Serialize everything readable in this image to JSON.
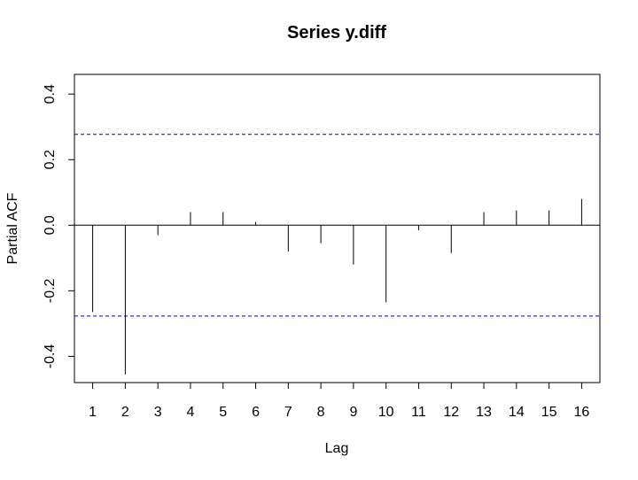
{
  "chart_data": {
    "type": "bar",
    "title": "Series  y.diff",
    "xlabel": "Lag",
    "ylabel": "Partial ACF",
    "x": [
      1,
      2,
      3,
      4,
      5,
      6,
      7,
      8,
      9,
      10,
      11,
      12,
      13,
      14,
      15,
      16
    ],
    "values": [
      -0.265,
      -0.455,
      -0.03,
      0.04,
      0.04,
      0.01,
      -0.08,
      -0.055,
      -0.12,
      -0.235,
      -0.015,
      -0.085,
      0.04,
      0.045,
      0.045,
      0.08
    ],
    "xticks": [
      "1",
      "2",
      "3",
      "4",
      "5",
      "6",
      "7",
      "8",
      "9",
      "10",
      "11",
      "12",
      "13",
      "14",
      "15",
      "16"
    ],
    "yticks": [
      "-0.4",
      "-0.2",
      "0.0",
      "0.2",
      "0.4"
    ],
    "ytick_values": [
      -0.4,
      -0.2,
      0.0,
      0.2,
      0.4
    ],
    "xlim": [
      0.44,
      16.56
    ],
    "ylim": [
      -0.48,
      0.46
    ],
    "confidence_bounds": [
      0.277,
      -0.277
    ],
    "bound_color": "#0000cc",
    "bar_color": "#000000",
    "grid": false,
    "legend": "none"
  }
}
